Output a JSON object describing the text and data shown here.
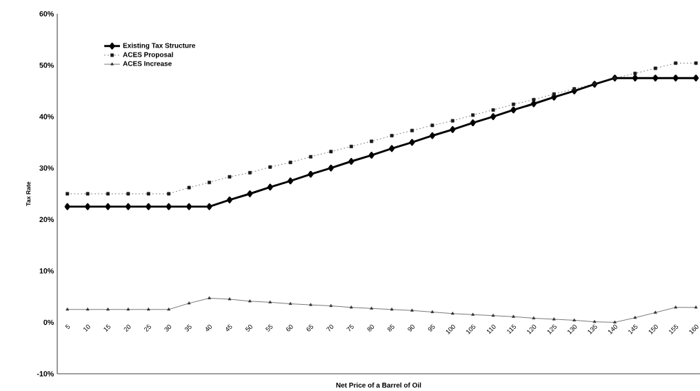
{
  "chart_data": {
    "type": "line",
    "xlabel": "Net Price of a Barrel of Oil",
    "ylabel": "Tax Rate",
    "categories": [
      "5",
      "10",
      "15",
      "20",
      "25",
      "30",
      "35",
      "40",
      "45",
      "50",
      "55",
      "60",
      "65",
      "70",
      "75",
      "80",
      "85",
      "90",
      "95",
      "100",
      "105",
      "110",
      "115",
      "120",
      "125",
      "130",
      "135",
      "140",
      "145",
      "150",
      "155",
      "160"
    ],
    "series": [
      {
        "name": "Existing Tax Structure",
        "color": "#000000",
        "marker": "diamond",
        "line_style": "solid",
        "values": [
          22.5,
          22.5,
          22.5,
          22.5,
          22.5,
          22.5,
          22.5,
          22.5,
          23.8,
          25,
          26.3,
          27.5,
          28.8,
          30,
          31.3,
          32.5,
          33.8,
          35,
          36.3,
          37.5,
          38.8,
          40,
          41.3,
          42.5,
          43.8,
          45,
          46.3,
          47.5,
          47.5,
          47.5,
          47.5,
          47.5
        ]
      },
      {
        "name": "ACES Proposal",
        "color": "#1a1a1a",
        "marker": "square",
        "line_style": "dotted",
        "values": [
          25,
          25,
          25,
          25,
          25,
          25,
          26.2,
          27.2,
          28.3,
          29.1,
          30.2,
          31.1,
          32.2,
          33.2,
          34.2,
          35.2,
          36.3,
          37.3,
          38.3,
          39.2,
          40.3,
          41.3,
          42.4,
          43.3,
          44.4,
          45.4,
          46.4,
          47.5,
          48.4,
          49.4,
          50.4,
          50.4
        ]
      },
      {
        "name": "ACES Increase",
        "color": "#333333",
        "marker": "triangle",
        "line_style": "solid",
        "values": [
          2.5,
          2.5,
          2.5,
          2.5,
          2.5,
          2.5,
          3.7,
          4.7,
          4.5,
          4.1,
          3.9,
          3.6,
          3.4,
          3.2,
          2.9,
          2.7,
          2.5,
          2.3,
          2.0,
          1.7,
          1.5,
          1.3,
          1.1,
          0.8,
          0.6,
          0.4,
          0.1,
          0,
          0.9,
          1.9,
          2.9,
          2.9
        ]
      }
    ],
    "ylim": [
      -10,
      60
    ],
    "yticks": [
      {
        "value": -10,
        "label": "-10%"
      },
      {
        "value": 0,
        "label": "0%"
      },
      {
        "value": 10,
        "label": "10%"
      },
      {
        "value": 20,
        "label": "20%"
      },
      {
        "value": 30,
        "label": "30%"
      },
      {
        "value": 40,
        "label": "40%"
      },
      {
        "value": 50,
        "label": "50%"
      },
      {
        "value": 60,
        "label": "60%"
      }
    ],
    "grid": false,
    "legend": "top left"
  }
}
